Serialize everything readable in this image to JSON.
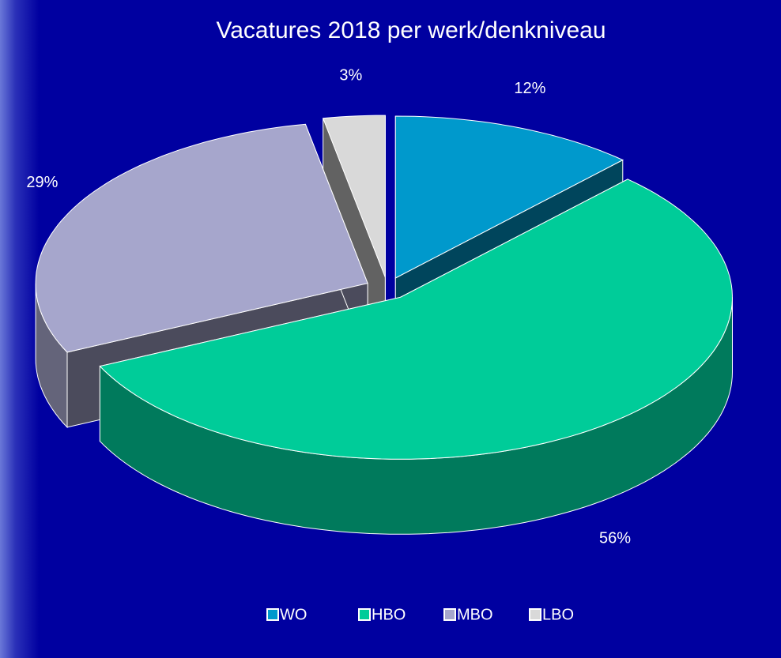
{
  "chart_data": {
    "type": "pie3d",
    "title": "Vacatures 2018 per werk/denkniveau",
    "categories": [
      "WO",
      "HBO",
      "MBO",
      "LBO"
    ],
    "values": [
      12,
      56,
      29,
      3
    ],
    "value_labels": [
      "12%",
      "56%",
      "29%",
      "3%"
    ],
    "colors": [
      "#0099cc",
      "#00cc99",
      "#a6a6cc",
      "#d9d9d9"
    ],
    "legend": "bottom"
  }
}
